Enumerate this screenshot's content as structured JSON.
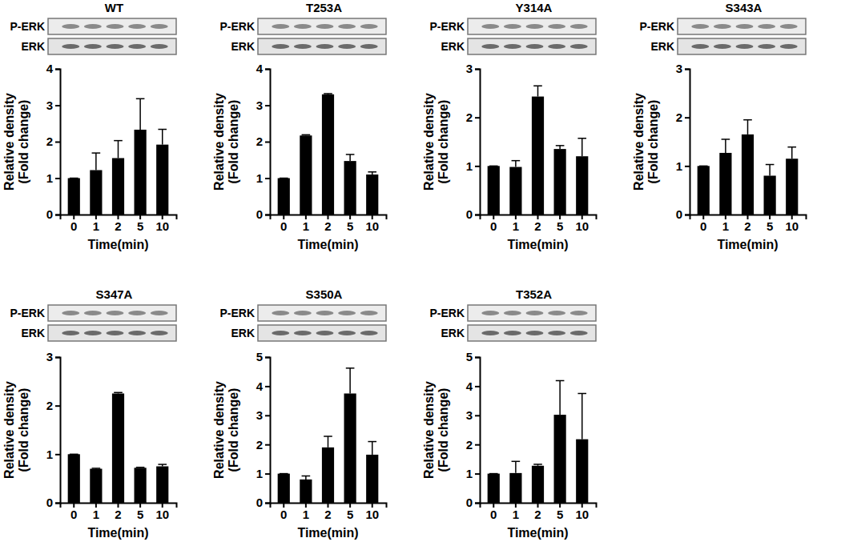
{
  "chart_data": [
    {
      "type": "bar",
      "title": "WT",
      "blot_labels": [
        "P-ERK",
        "ERK"
      ],
      "categories": [
        "0",
        "1",
        "2",
        "5",
        "10"
      ],
      "values": [
        1,
        1.22,
        1.55,
        2.33,
        1.92
      ],
      "errors": [
        0,
        0.47,
        0.48,
        0.85,
        0.42
      ],
      "ylim": [
        0,
        4
      ],
      "yticks": [
        0,
        1,
        2,
        3,
        4
      ],
      "xlabel": "Time(min)",
      "ylabel": [
        "Relative density",
        "(Fold change)"
      ],
      "color": "#000000"
    },
    {
      "type": "bar",
      "title": "T253A",
      "blot_labels": [
        "P-ERK",
        "ERK"
      ],
      "categories": [
        "0",
        "1",
        "2",
        "5",
        "10"
      ],
      "values": [
        1,
        2.17,
        3.3,
        1.47,
        1.1
      ],
      "errors": [
        0,
        0.02,
        0.02,
        0.18,
        0.07
      ],
      "ylim": [
        0,
        4
      ],
      "yticks": [
        0,
        1,
        2,
        3,
        4
      ],
      "xlabel": "Time(min)",
      "ylabel": [
        "Relative density",
        "(Fold change)"
      ],
      "color": "#000000"
    },
    {
      "type": "bar",
      "title": "Y314A",
      "blot_labels": [
        "P-ERK",
        "ERK"
      ],
      "categories": [
        "0",
        "1",
        "2",
        "5",
        "10"
      ],
      "values": [
        1,
        0.98,
        2.43,
        1.35,
        1.2
      ],
      "errors": [
        0,
        0.13,
        0.22,
        0.07,
        0.37
      ],
      "ylim": [
        0,
        3
      ],
      "yticks": [
        0,
        1,
        2,
        3
      ],
      "xlabel": "Time(min)",
      "ylabel": [
        "Relative density",
        "(Fold change)"
      ],
      "color": "#000000"
    },
    {
      "type": "bar",
      "title": "S343A",
      "blot_labels": [
        "P-ERK",
        "ERK"
      ],
      "categories": [
        "0",
        "1",
        "2",
        "5",
        "10"
      ],
      "values": [
        1,
        1.27,
        1.65,
        0.8,
        1.15
      ],
      "errors": [
        0,
        0.28,
        0.3,
        0.23,
        0.24
      ],
      "ylim": [
        0,
        3
      ],
      "yticks": [
        0,
        1,
        2,
        3
      ],
      "xlabel": "Time(min)",
      "ylabel": [
        "Relative density",
        "(Fold change)"
      ],
      "color": "#000000"
    },
    {
      "type": "bar",
      "title": "S347A",
      "blot_labels": [
        "P-ERK",
        "ERK"
      ],
      "categories": [
        "0",
        "1",
        "2",
        "5",
        "10"
      ],
      "values": [
        1,
        0.7,
        2.25,
        0.72,
        0.75
      ],
      "errors": [
        0,
        0.01,
        0.02,
        0.01,
        0.04
      ],
      "ylim": [
        0,
        3
      ],
      "yticks": [
        0,
        1,
        2,
        3
      ],
      "xlabel": "Time(min)",
      "ylabel": [
        "Relative density",
        "(Fold change)"
      ],
      "color": "#000000"
    },
    {
      "type": "bar",
      "title": "S350A",
      "blot_labels": [
        "P-ERK",
        "ERK"
      ],
      "categories": [
        "0",
        "1",
        "2",
        "5",
        "10"
      ],
      "values": [
        1,
        0.8,
        1.9,
        3.75,
        1.65
      ],
      "errors": [
        0,
        0.12,
        0.38,
        0.87,
        0.45
      ],
      "ylim": [
        0,
        5
      ],
      "yticks": [
        0,
        1,
        2,
        3,
        4,
        5
      ],
      "xlabel": "Time(min)",
      "ylabel": [
        "Relative density",
        "(Fold change)"
      ],
      "color": "#000000"
    },
    {
      "type": "bar",
      "title": "T352A",
      "blot_labels": [
        "P-ERK",
        "ERK"
      ],
      "categories": [
        "0",
        "1",
        "2",
        "5",
        "10"
      ],
      "values": [
        1,
        1.02,
        1.27,
        3.02,
        2.18
      ],
      "errors": [
        0,
        0.4,
        0.05,
        1.17,
        1.57
      ],
      "ylim": [
        0,
        5
      ],
      "yticks": [
        0,
        1,
        2,
        3,
        4,
        5
      ],
      "xlabel": "Time(min)",
      "ylabel": [
        "Relative density",
        "(Fold change)"
      ],
      "color": "#000000"
    }
  ]
}
